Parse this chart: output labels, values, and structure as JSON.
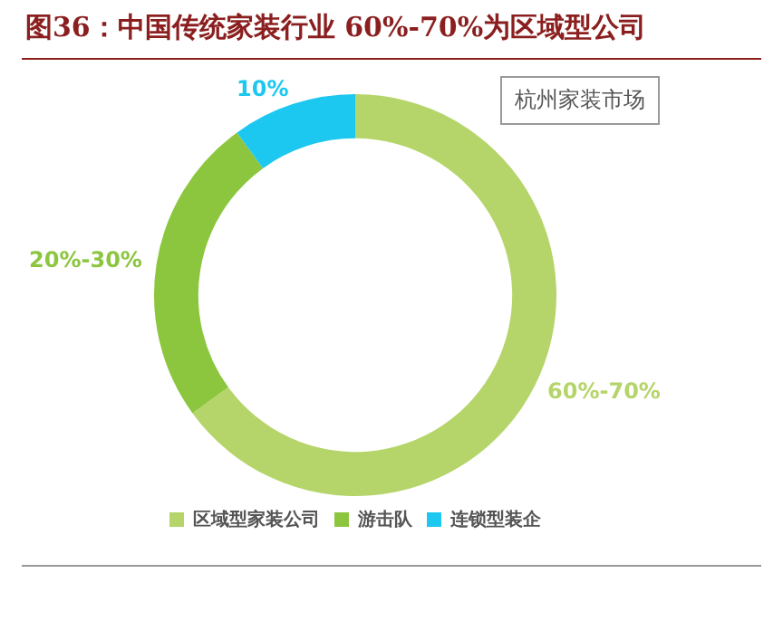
{
  "chart_data": {
    "type": "donut",
    "title": "图36：中国传统家装行业 60%-70%为区域型公司",
    "categories": [
      "区域型家装公司",
      "游击队",
      "连锁型装企"
    ],
    "values": [
      65,
      25,
      10
    ],
    "colors": [
      "#b5d56a",
      "#8cc63f",
      "#1cc7f0"
    ],
    "legend": "bottom",
    "annotations": [
      "杭州家装市场",
      {
        "text": "60%-70%",
        "x": "区域型家装公司"
      },
      {
        "text": "20%-30%",
        "x": "游击队"
      },
      {
        "text": "10%",
        "x": "连锁型装企"
      }
    ]
  }
}
